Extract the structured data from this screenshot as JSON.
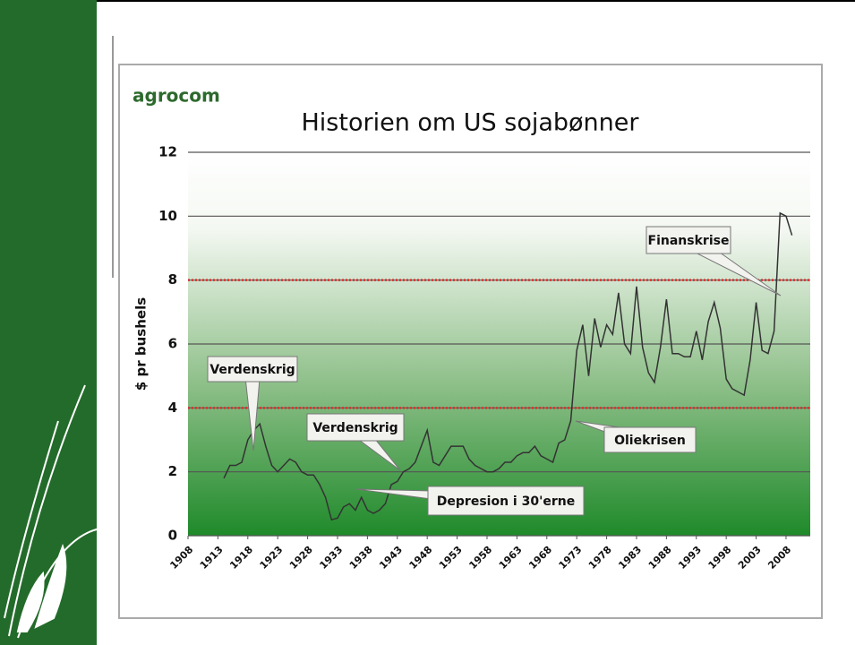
{
  "logo": "agrocom",
  "chart_data": {
    "type": "line",
    "title": "Historien om US sojabønner",
    "y_label": "$ pr bushels",
    "x": [
      1914,
      1915,
      1916,
      1917,
      1918,
      1919,
      1920,
      1921,
      1922,
      1923,
      1924,
      1925,
      1926,
      1927,
      1928,
      1929,
      1930,
      1931,
      1932,
      1933,
      1934,
      1935,
      1936,
      1937,
      1938,
      1939,
      1940,
      1941,
      1942,
      1943,
      1944,
      1945,
      1946,
      1947,
      1948,
      1949,
      1950,
      1951,
      1952,
      1953,
      1954,
      1955,
      1956,
      1957,
      1958,
      1959,
      1960,
      1961,
      1962,
      1963,
      1964,
      1965,
      1966,
      1967,
      1968,
      1969,
      1970,
      1971,
      1972,
      1973,
      1974,
      1975,
      1976,
      1977,
      1978,
      1979,
      1980,
      1981,
      1982,
      1983,
      1984,
      1985,
      1986,
      1987,
      1988,
      1989,
      1990,
      1991,
      1992,
      1993,
      1994,
      1995,
      1996,
      1997,
      1998,
      1999,
      2000,
      2001,
      2002,
      2003,
      2004,
      2005,
      2006,
      2007,
      2008,
      2009
    ],
    "values": [
      1.8,
      2.2,
      2.2,
      2.3,
      3.0,
      3.3,
      3.5,
      2.8,
      2.2,
      2.0,
      2.2,
      2.4,
      2.3,
      2.0,
      1.9,
      1.9,
      1.6,
      1.2,
      0.5,
      0.55,
      0.9,
      1.0,
      0.8,
      1.2,
      0.8,
      0.7,
      0.8,
      1.0,
      1.6,
      1.7,
      2.0,
      2.1,
      2.3,
      2.8,
      3.3,
      2.3,
      2.2,
      2.5,
      2.8,
      2.8,
      2.8,
      2.4,
      2.2,
      2.1,
      2.0,
      2.0,
      2.1,
      2.3,
      2.3,
      2.5,
      2.6,
      2.6,
      2.8,
      2.5,
      2.4,
      2.3,
      2.9,
      3.0,
      3.6,
      5.8,
      6.6,
      5.0,
      6.8,
      5.9,
      6.6,
      6.3,
      7.6,
      6.0,
      5.7,
      7.8,
      5.9,
      5.1,
      4.8,
      5.9,
      7.4,
      5.7,
      5.7,
      5.6,
      5.6,
      6.4,
      5.5,
      6.7,
      7.3,
      6.5,
      4.9,
      4.6,
      4.5,
      4.4,
      5.5,
      7.3,
      5.8,
      5.7,
      6.4,
      10.1,
      10.0,
      9.4
    ],
    "color": "#333333",
    "xlim": [
      1908,
      2011
    ],
    "xticks": [
      1908,
      1913,
      1918,
      1923,
      1928,
      1933,
      1938,
      1943,
      1948,
      1953,
      1958,
      1963,
      1968,
      1973,
      1978,
      1983,
      1988,
      1993,
      1998,
      2003,
      2008
    ],
    "ylim": [
      0,
      12
    ],
    "yticks": [
      0,
      2,
      4,
      6,
      8,
      10,
      12
    ],
    "grid": true,
    "reference_lines": [
      4,
      8
    ],
    "reference_color": "#d9302c",
    "annotations": [
      "Verdenskrig",
      "Verdenskrig",
      "Depresion i 30'erne",
      "Oliekrisen",
      "Finanskrise"
    ]
  }
}
